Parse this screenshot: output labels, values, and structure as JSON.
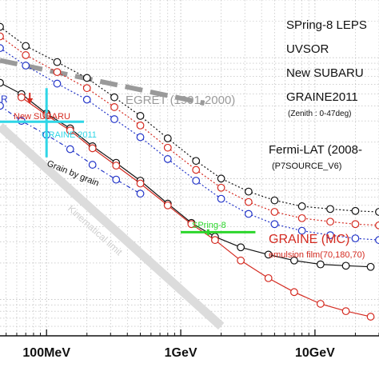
{
  "chart_data": {
    "type": "line",
    "x_scale": "log",
    "y_scale": "log",
    "x_unit": "eV",
    "xlim": [
      45000000.0,
      30000000000.0
    ],
    "ylim": [
      0.05,
      30
    ],
    "grid": true,
    "x_tick_values": [
      100000000.0,
      1000000000.0,
      10000000000.0
    ],
    "x_tick_labels": [
      "100MeV",
      "1GeV",
      "10GeV"
    ],
    "series": [
      {
        "name": "",
        "role": "top-black",
        "color": "#111111",
        "style": "dotted",
        "marker": "circle",
        "x": [
          45000000.0,
          70000000.0,
          120000000.0,
          200000000.0,
          320000000.0,
          500000000.0,
          800000000.0,
          1300000000.0,
          2000000000.0,
          3200000000.0,
          5000000000.0,
          8000000000.0,
          13000000000.0,
          20000000000.0,
          30000000000.0
        ],
        "y": [
          18.0,
          12.5,
          9.2,
          6.8,
          4.7,
          3.3,
          2.15,
          1.4,
          1.0,
          0.78,
          0.66,
          0.59,
          0.56,
          0.54,
          0.53
        ]
      },
      {
        "name": "",
        "role": "top-red",
        "color": "#d42a20",
        "style": "dotted",
        "marker": "circle",
        "x": [
          45000000.0,
          70000000.0,
          120000000.0,
          200000000.0,
          320000000.0,
          500000000.0,
          800000000.0,
          1300000000.0,
          2000000000.0,
          3200000000.0,
          5000000000.0,
          8000000000.0,
          13000000000.0,
          20000000000.0,
          30000000000.0
        ],
        "y": [
          15.0,
          10.5,
          7.6,
          5.6,
          3.9,
          2.75,
          1.8,
          1.18,
          0.84,
          0.64,
          0.53,
          0.47,
          0.44,
          0.42,
          0.41
        ]
      },
      {
        "name": "",
        "role": "top-blue",
        "color": "#2234c8",
        "style": "dotted",
        "marker": "circle",
        "x": [
          45000000.0,
          70000000.0,
          120000000.0,
          200000000.0,
          320000000.0,
          500000000.0,
          800000000.0,
          1300000000.0,
          2000000000.0,
          3200000000.0,
          5000000000.0,
          8000000000.0,
          13000000000.0,
          20000000000.0,
          30000000000.0
        ],
        "y": [
          12.0,
          8.6,
          6.1,
          4.5,
          3.1,
          2.2,
          1.45,
          0.96,
          0.68,
          0.51,
          0.42,
          0.37,
          0.34,
          0.32,
          0.31
        ]
      },
      {
        "name": "",
        "role": "mc-black",
        "color": "#111111",
        "style": "solid",
        "marker": "circle",
        "x": [
          45000000.0,
          65000000.0,
          100000000.0,
          150000000.0,
          220000000.0,
          330000000.0,
          500000000.0,
          800000000.0,
          1200000000.0,
          1800000000.0,
          2800000000.0,
          4500000000.0,
          7000000000.0,
          11000000000.0,
          17000000000.0,
          26000000000.0
        ],
        "y": [
          6.2,
          5.0,
          3.45,
          2.6,
          1.85,
          1.35,
          0.96,
          0.62,
          0.43,
          0.33,
          0.27,
          0.235,
          0.21,
          0.195,
          0.19,
          0.186
        ]
      },
      {
        "name": "",
        "role": "mc-red",
        "color": "#d42a20",
        "style": "solid",
        "marker": "circle",
        "x": [
          65000000.0,
          100000000.0,
          150000000.0,
          220000000.0,
          330000000.0,
          500000000.0,
          800000000.0,
          1200000000.0,
          1800000000.0,
          2800000000.0,
          4500000000.0,
          7000000000.0,
          11000000000.0,
          17000000000.0,
          26000000000.0
        ],
        "y": [
          4.7,
          3.35,
          2.5,
          1.78,
          1.28,
          0.91,
          0.6,
          0.42,
          0.31,
          0.21,
          0.15,
          0.115,
          0.092,
          0.08,
          0.072
        ]
      },
      {
        "name": "",
        "role": "mc-blue",
        "color": "#2234c8",
        "style": "dashdot",
        "marker": "circle",
        "x": [
          45000000.0,
          65000000.0,
          100000000.0,
          150000000.0,
          220000000.0,
          330000000.0,
          500000000.0
        ],
        "y": [
          4.0,
          3.0,
          2.3,
          1.75,
          1.3,
          0.98,
          0.75
        ]
      },
      {
        "name": "",
        "role": "kinematical",
        "color": "#dcdcdc",
        "style": "solid",
        "marker": "none",
        "x": [
          45000000.0,
          2000000000.0
        ],
        "y": [
          2.7,
          0.06
        ]
      },
      {
        "name": "",
        "role": "egret",
        "color": "#9a9a9a",
        "style": "dashed",
        "marker": "none",
        "x": [
          45000000.0,
          1500000000.0
        ],
        "y": [
          9.5,
          4.2
        ]
      }
    ],
    "measurements": [
      {
        "label": "GRAINE 2011",
        "color": "#2fd6e6",
        "x": 100000000.0,
        "y": 2.95,
        "x_range": [
          45000000.0,
          190000000.0
        ],
        "y_range": [
          1.5,
          5.6
        ]
      },
      {
        "label": "SPring-8",
        "color": "#2bd62b",
        "x": 1600000000.0,
        "y": 0.36,
        "x_range": [
          1000000000.0,
          3600000000.0
        ],
        "y_range": [
          0.34,
          0.38
        ]
      },
      {
        "label": "New SUBARU",
        "color": "#d42a20",
        "x": 75000000.0,
        "y": 4.4,
        "marker": "arrow-down"
      }
    ],
    "annotations": [
      {
        "text": "SPring-8 LEPS",
        "color": "#111111"
      },
      {
        "text": "UVSOR",
        "color": "#111111"
      },
      {
        "text": "New SUBARU",
        "color": "#111111"
      },
      {
        "text": "GRAINE2011",
        "color": "#111111"
      },
      {
        "text": "(Zenith : 0-47deg)",
        "color": "#111111"
      },
      {
        "text": "EGRET (1991-2000)",
        "color": "#9a9a9a"
      },
      {
        "text": "Fermi-LAT (2008-",
        "color": "#111111"
      },
      {
        "text": "(P7SOURCE_V6)",
        "color": "#111111"
      },
      {
        "text": "GRAINE (MC)",
        "color": "#d42a20"
      },
      {
        "text": "emulsion film(70,180,70)",
        "color": "#d42a20"
      },
      {
        "text": "Grain by grain",
        "color": "#111111"
      },
      {
        "text": "Kinematical limit",
        "color": "#cfcfcf"
      },
      {
        "text": "New SUBARU",
        "color": "#d42a20"
      },
      {
        "text": "GRAINE 2011",
        "color": "#2fd6e6"
      },
      {
        "text": "SPring-8",
        "color": "#2bd62b"
      },
      {
        "text": "R",
        "color": "#2234c8"
      }
    ]
  }
}
